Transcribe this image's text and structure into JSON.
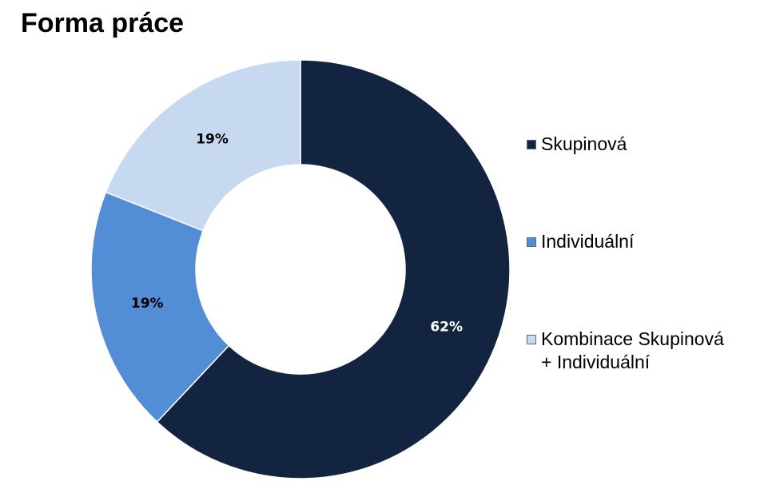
{
  "chart_data": {
    "type": "pie",
    "title": "Forma práce",
    "donut": true,
    "slices": [
      {
        "name": "Skupinová",
        "value": 62,
        "label": "62%",
        "color": "#12243f",
        "label_color": "#ffffff"
      },
      {
        "name": "Individuální",
        "value": 19,
        "label": "19%",
        "color": "#538dd5",
        "label_color": "#000000"
      },
      {
        "name": "Kombinace Skupinová\n+ Individuální",
        "value": 19,
        "label": "19%",
        "color": "#c6d9f0",
        "label_color": "#000000"
      }
    ],
    "start_angle": "12 o'clock",
    "direction": "clockwise",
    "legend": {
      "position": "right",
      "entries": [
        "Skupinová",
        "Individuální",
        "Kombinace Skupinová\n+ Individuální"
      ]
    }
  }
}
